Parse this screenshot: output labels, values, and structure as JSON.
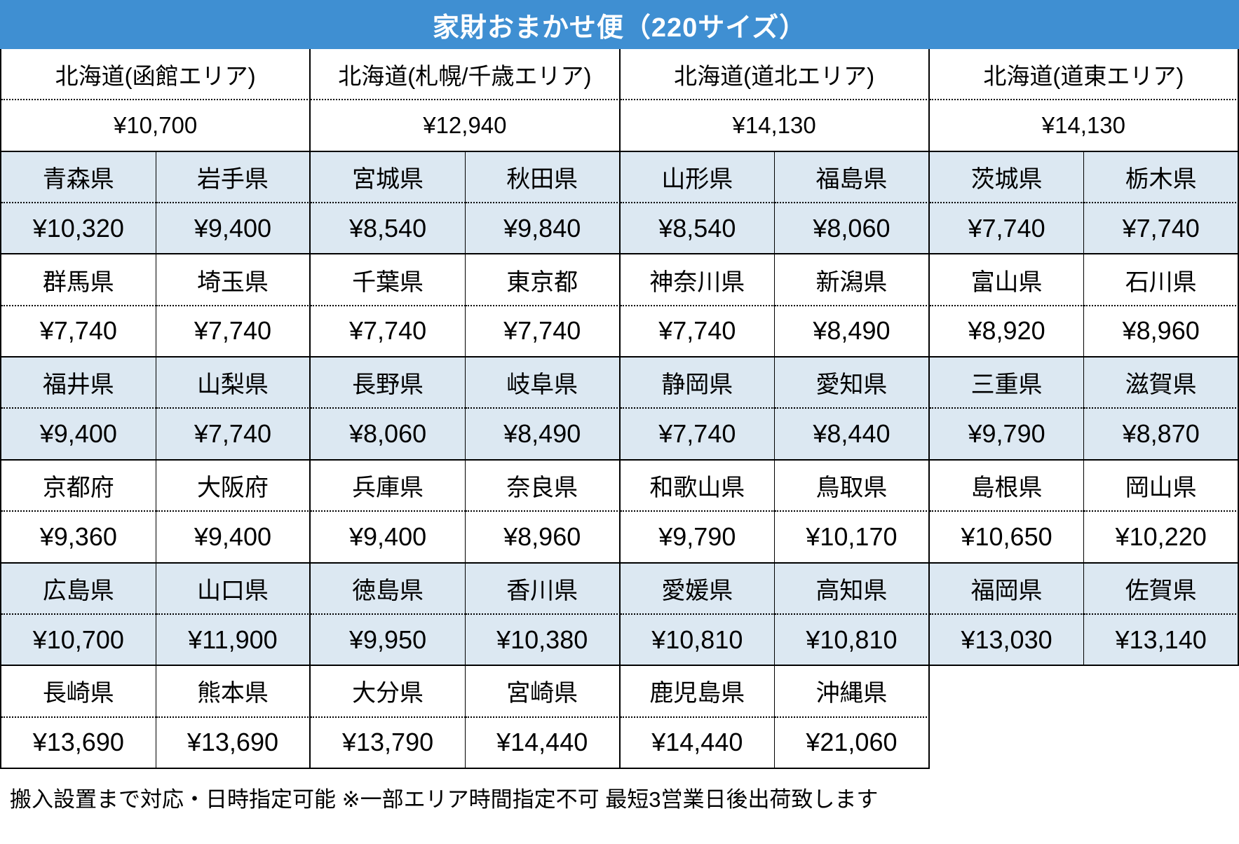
{
  "colors": {
    "header_bg": "#3F8FD2",
    "header_text": "#FFFFFF",
    "shaded_band_bg": "#DCE8F2",
    "plain_band_bg": "#FFFFFF",
    "border": "#000000"
  },
  "chart_data": {
    "type": "table",
    "title": "家財おまかせ便（220サイズ）",
    "footer_note": "搬入設置まで対応・日時指定可能 ※一部エリア時間指定不可 最短3営業日後出荷致します",
    "currency": "JPY",
    "hokkaido_areas": [
      {
        "name": "北海道(函館エリア)",
        "price": "¥10,700"
      },
      {
        "name": "北海道(札幌/千歳エリア)",
        "price": "¥12,940"
      },
      {
        "name": "北海道(道北エリア)",
        "price": "¥14,130"
      },
      {
        "name": "北海道(道東エリア)",
        "price": "¥14,130"
      }
    ],
    "prefecture_groups": [
      {
        "shaded": true,
        "cells": [
          {
            "name": "青森県",
            "price": "¥10,320"
          },
          {
            "name": "岩手県",
            "price": "¥9,400"
          },
          {
            "name": "宮城県",
            "price": "¥8,540"
          },
          {
            "name": "秋田県",
            "price": "¥9,840"
          },
          {
            "name": "山形県",
            "price": "¥8,540"
          },
          {
            "name": "福島県",
            "price": "¥8,060"
          },
          {
            "name": "茨城県",
            "price": "¥7,740"
          },
          {
            "name": "栃木県",
            "price": "¥7,740"
          }
        ]
      },
      {
        "shaded": false,
        "cells": [
          {
            "name": "群馬県",
            "price": "¥7,740"
          },
          {
            "name": "埼玉県",
            "price": "¥7,740"
          },
          {
            "name": "千葉県",
            "price": "¥7,740"
          },
          {
            "name": "東京都",
            "price": "¥7,740"
          },
          {
            "name": "神奈川県",
            "price": "¥7,740"
          },
          {
            "name": "新潟県",
            "price": "¥8,490"
          },
          {
            "name": "富山県",
            "price": "¥8,920"
          },
          {
            "name": "石川県",
            "price": "¥8,960"
          }
        ]
      },
      {
        "shaded": true,
        "cells": [
          {
            "name": "福井県",
            "price": "¥9,400"
          },
          {
            "name": "山梨県",
            "price": "¥7,740"
          },
          {
            "name": "長野県",
            "price": "¥8,060"
          },
          {
            "name": "岐阜県",
            "price": "¥8,490"
          },
          {
            "name": "静岡県",
            "price": "¥7,740"
          },
          {
            "name": "愛知県",
            "price": "¥8,440"
          },
          {
            "name": "三重県",
            "price": "¥9,790"
          },
          {
            "name": "滋賀県",
            "price": "¥8,870"
          }
        ]
      },
      {
        "shaded": false,
        "cells": [
          {
            "name": "京都府",
            "price": "¥9,360"
          },
          {
            "name": "大阪府",
            "price": "¥9,400"
          },
          {
            "name": "兵庫県",
            "price": "¥9,400"
          },
          {
            "name": "奈良県",
            "price": "¥8,960"
          },
          {
            "name": "和歌山県",
            "price": "¥9,790"
          },
          {
            "name": "鳥取県",
            "price": "¥10,170"
          },
          {
            "name": "島根県",
            "price": "¥10,650"
          },
          {
            "name": "岡山県",
            "price": "¥10,220"
          }
        ]
      },
      {
        "shaded": true,
        "cells": [
          {
            "name": "広島県",
            "price": "¥10,700"
          },
          {
            "name": "山口県",
            "price": "¥11,900"
          },
          {
            "name": "徳島県",
            "price": "¥9,950"
          },
          {
            "name": "香川県",
            "price": "¥10,380"
          },
          {
            "name": "愛媛県",
            "price": "¥10,810"
          },
          {
            "name": "高知県",
            "price": "¥10,810"
          },
          {
            "name": "福岡県",
            "price": "¥13,030"
          },
          {
            "name": "佐賀県",
            "price": "¥13,140"
          }
        ]
      },
      {
        "shaded": false,
        "cells": [
          {
            "name": "長崎県",
            "price": "¥13,690"
          },
          {
            "name": "熊本県",
            "price": "¥13,690"
          },
          {
            "name": "大分県",
            "price": "¥13,790"
          },
          {
            "name": "宮崎県",
            "price": "¥14,440"
          },
          {
            "name": "鹿児島県",
            "price": "¥14,440"
          },
          {
            "name": "沖縄県",
            "price": "¥21,060"
          }
        ]
      }
    ]
  }
}
